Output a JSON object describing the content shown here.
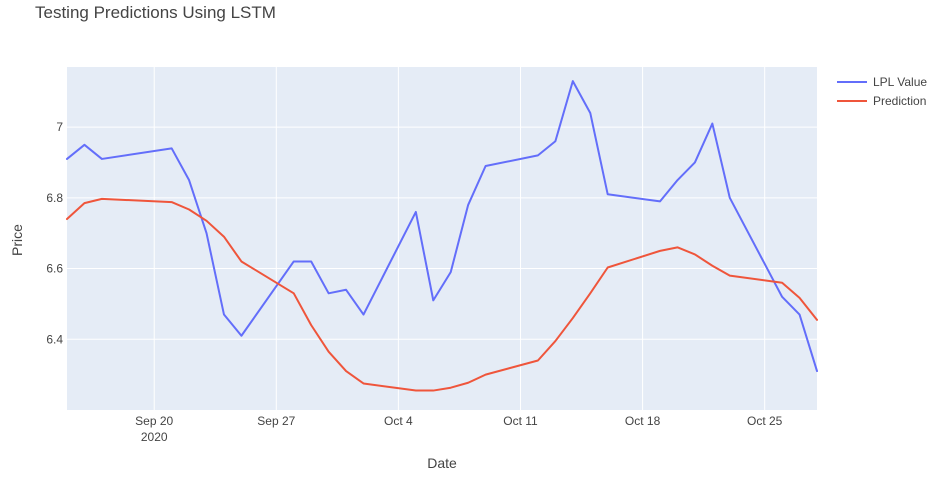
{
  "chart_data": {
    "type": "line",
    "title": "Testing Predictions Using LSTM",
    "xlabel": "Date",
    "ylabel": "Price",
    "x_start": "2020-09-15",
    "x_end": "2020-10-28",
    "xlim": [
      "2020-09-15",
      "2020-10-28"
    ],
    "ylim": [
      6.2,
      7.17
    ],
    "x_ticks": [
      {
        "label": "Sep 20",
        "sublabel": "2020",
        "date": "2020-09-20"
      },
      {
        "label": "Sep 27",
        "sublabel": "",
        "date": "2020-09-27"
      },
      {
        "label": "Oct 4",
        "sublabel": "",
        "date": "2020-10-04"
      },
      {
        "label": "Oct 11",
        "sublabel": "",
        "date": "2020-10-11"
      },
      {
        "label": "Oct 18",
        "sublabel": "",
        "date": "2020-10-18"
      },
      {
        "label": "Oct 25",
        "sublabel": "",
        "date": "2020-10-25"
      }
    ],
    "y_ticks": [
      {
        "label": "6.4",
        "value": 6.4
      },
      {
        "label": "6.6",
        "value": 6.6
      },
      {
        "label": "6.8",
        "value": 6.8
      },
      {
        "label": "7",
        "value": 7.0
      }
    ],
    "grid": true,
    "legend_position": "top-right",
    "colors": {
      "background": "#e5ecf6",
      "grid": "#ffffff"
    },
    "series": [
      {
        "name": "LPL Value",
        "color": "#636efa",
        "x": [
          "2020-09-15",
          "2020-09-16",
          "2020-09-17",
          "2020-09-21",
          "2020-09-22",
          "2020-09-23",
          "2020-09-24",
          "2020-09-25",
          "2020-09-28",
          "2020-09-29",
          "2020-09-30",
          "2020-10-01",
          "2020-10-02",
          "2020-10-05",
          "2020-10-06",
          "2020-10-07",
          "2020-10-08",
          "2020-10-09",
          "2020-10-12",
          "2020-10-13",
          "2020-10-14",
          "2020-10-15",
          "2020-10-16",
          "2020-10-19",
          "2020-10-20",
          "2020-10-21",
          "2020-10-22",
          "2020-10-23",
          "2020-10-26",
          "2020-10-27",
          "2020-10-28"
        ],
        "values": [
          6.91,
          6.95,
          6.91,
          6.94,
          6.85,
          6.7,
          6.47,
          6.41,
          6.62,
          6.62,
          6.53,
          6.54,
          6.47,
          6.76,
          6.51,
          6.59,
          6.78,
          6.89,
          6.92,
          6.96,
          7.13,
          7.04,
          6.81,
          6.79,
          6.85,
          6.9,
          7.01,
          6.8,
          6.52,
          6.47,
          6.31
        ]
      },
      {
        "name": "Prediction",
        "color": "#ef553b",
        "x": [
          "2020-09-15",
          "2020-09-16",
          "2020-09-17",
          "2020-09-21",
          "2020-09-22",
          "2020-09-23",
          "2020-09-24",
          "2020-09-25",
          "2020-09-28",
          "2020-09-29",
          "2020-09-30",
          "2020-10-01",
          "2020-10-02",
          "2020-10-05",
          "2020-10-06",
          "2020-10-07",
          "2020-10-08",
          "2020-10-09",
          "2020-10-12",
          "2020-10-13",
          "2020-10-14",
          "2020-10-15",
          "2020-10-16",
          "2020-10-19",
          "2020-10-20",
          "2020-10-21",
          "2020-10-22",
          "2020-10-23",
          "2020-10-26",
          "2020-10-27",
          "2020-10-28"
        ],
        "values": [
          6.74,
          6.785,
          6.797,
          6.788,
          6.767,
          6.735,
          6.69,
          6.62,
          6.53,
          6.44,
          6.365,
          6.31,
          6.275,
          6.255,
          6.255,
          6.263,
          6.277,
          6.3,
          6.34,
          6.395,
          6.46,
          6.53,
          6.603,
          6.65,
          6.66,
          6.64,
          6.608,
          6.58,
          6.56,
          6.517,
          6.455
        ]
      }
    ]
  }
}
